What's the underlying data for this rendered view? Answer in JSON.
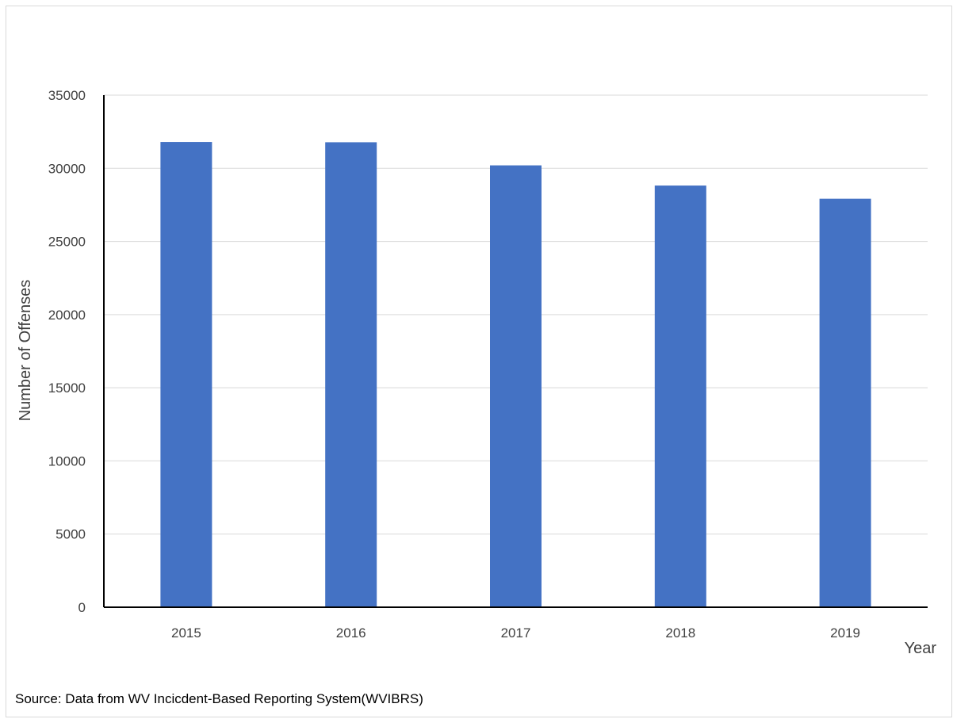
{
  "chart_data": {
    "type": "bar",
    "title": "",
    "xlabel": "Year",
    "ylabel": "Number of Offenses",
    "categories": [
      "2015",
      "2016",
      "2017",
      "2018",
      "2019"
    ],
    "values": [
      31800,
      31780,
      30200,
      28820,
      27920
    ],
    "ylim": [
      0,
      35000
    ],
    "y_ticks": [
      0,
      5000,
      10000,
      15000,
      20000,
      25000,
      30000,
      35000
    ],
    "y_tick_labels": [
      "0",
      "5000",
      "10000",
      "15000",
      "20000",
      "25000",
      "30000",
      "35000"
    ],
    "grid": true,
    "legend": "none",
    "bar_color": "#4472C4",
    "grid_color": "#d9d9d9",
    "axis_color": "#000000"
  },
  "source_note": "Source: Data from WV Incicdent-Based Reporting System(WVIBRS)"
}
